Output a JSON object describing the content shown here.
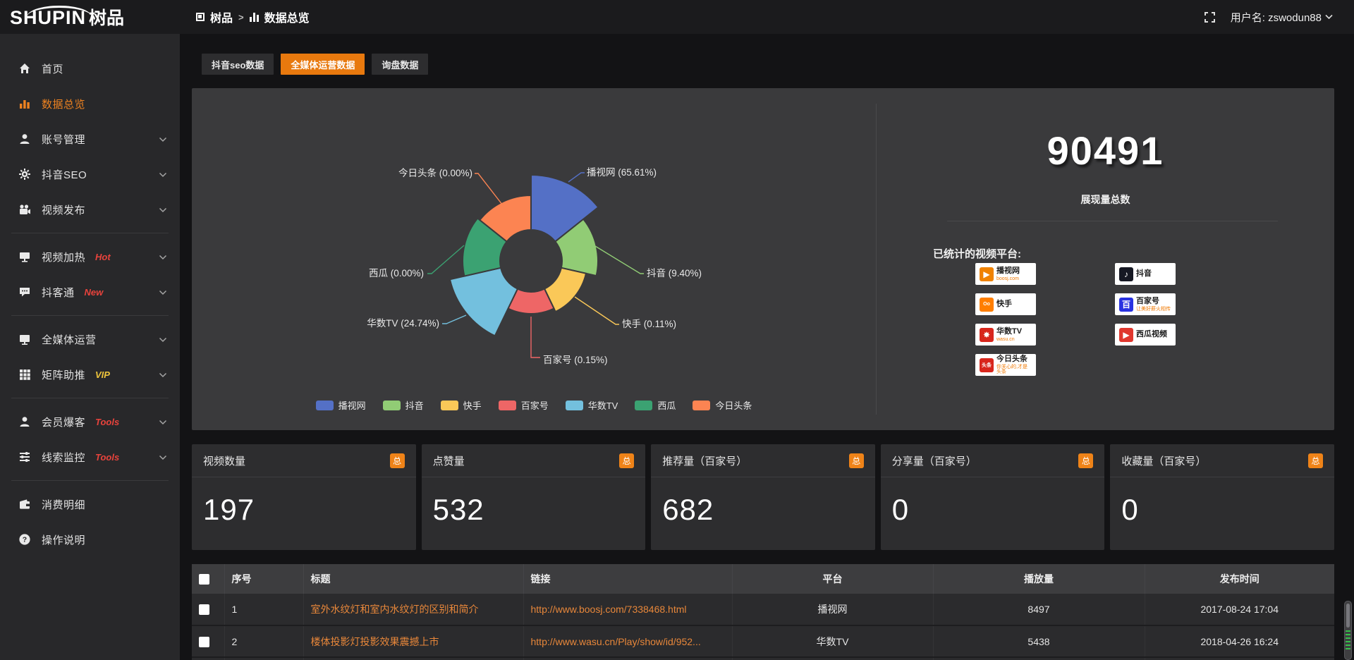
{
  "topbar": {
    "logo_main": "SHUPIN",
    "logo_suffix": "树品",
    "breadcrumb": {
      "item1": "树品",
      "separator": ">",
      "item2": "数据总览"
    },
    "username": "用户名: zswodun88"
  },
  "sidebar": {
    "items": [
      {
        "label": "首页",
        "icon": "home-icon",
        "chevron": false,
        "badge": "",
        "badge_color": "",
        "active": false,
        "divider_after": false
      },
      {
        "label": "数据总览",
        "icon": "bar-chart-icon",
        "chevron": false,
        "badge": "",
        "badge_color": "",
        "active": true,
        "divider_after": false
      },
      {
        "label": "账号管理",
        "icon": "user-icon",
        "chevron": true,
        "badge": "",
        "badge_color": "",
        "active": false,
        "divider_after": false
      },
      {
        "label": "抖音SEO",
        "icon": "gear-icon",
        "chevron": true,
        "badge": "",
        "badge_color": "",
        "active": false,
        "divider_after": false
      },
      {
        "label": "视频发布",
        "icon": "video-camera-icon",
        "chevron": true,
        "badge": "",
        "badge_color": "",
        "active": false,
        "divider_after": true
      },
      {
        "label": "视频加热",
        "icon": "screen-icon",
        "chevron": true,
        "badge": "Hot",
        "badge_color": "#e8433c",
        "active": false,
        "divider_after": false
      },
      {
        "label": "抖客通",
        "icon": "chat-icon",
        "chevron": true,
        "badge": "New",
        "badge_color": "#e8433c",
        "active": false,
        "divider_after": true
      },
      {
        "label": "全媒体运营",
        "icon": "monitor-icon",
        "chevron": true,
        "badge": "",
        "badge_color": "",
        "active": false,
        "divider_after": false
      },
      {
        "label": "矩阵助推",
        "icon": "grid-icon",
        "chevron": true,
        "badge": "VIP",
        "badge_color": "#edc43c",
        "active": false,
        "divider_after": true
      },
      {
        "label": "会员爆客",
        "icon": "member-icon",
        "chevron": true,
        "badge": "Tools",
        "badge_color": "#e8433c",
        "active": false,
        "divider_after": false
      },
      {
        "label": "线索监控",
        "icon": "sliders-icon",
        "chevron": true,
        "badge": "Tools",
        "badge_color": "#e8433c",
        "active": false,
        "divider_after": true
      },
      {
        "label": "消费明细",
        "icon": "wallet-icon",
        "chevron": false,
        "badge": "",
        "badge_color": "",
        "active": false,
        "divider_after": false
      },
      {
        "label": "操作说明",
        "icon": "help-icon",
        "chevron": false,
        "badge": "",
        "badge_color": "",
        "active": false,
        "divider_after": false
      }
    ]
  },
  "tabs": [
    {
      "label": "抖音seo数据",
      "active": false
    },
    {
      "label": "全媒体运营数据",
      "active": true
    },
    {
      "label": "询盘数据",
      "active": false
    }
  ],
  "chart_data": {
    "type": "pie",
    "subtype": "nightingale-rose",
    "title": "",
    "legend_position": "bottom",
    "items": [
      {
        "name": "播视网",
        "percent": 65.61,
        "color": "#5470c6"
      },
      {
        "name": "抖音",
        "percent": 9.4,
        "color": "#91cc75"
      },
      {
        "name": "快手",
        "percent": 0.11,
        "color": "#fac858"
      },
      {
        "name": "百家号",
        "percent": 0.15,
        "color": "#ee6666"
      },
      {
        "name": "华数TV",
        "percent": 24.74,
        "color": "#73c0de"
      },
      {
        "name": "西瓜",
        "percent": 0.0,
        "color": "#3ba272"
      },
      {
        "name": "今日头条",
        "percent": 0.0,
        "color": "#fc8452"
      }
    ],
    "total_shown": 90491
  },
  "summary": {
    "total_value": "90491",
    "total_label": "展现量总数",
    "platforms_label": "已统计的视频平台:",
    "platform_columns": [
      [
        {
          "name": "播视网",
          "sub": "boosj.com",
          "logo_icon": "play-circle-icon",
          "logo_char": "▶",
          "logo_color": "#f08200"
        },
        {
          "name": "快手",
          "sub": "",
          "logo_icon": "kuaishou-icon",
          "logo_char": "Oo",
          "logo_color": "#ff7e00"
        },
        {
          "name": "华数TV",
          "sub": "wasu.cn",
          "logo_icon": "wasu-burst-icon",
          "logo_char": "✸",
          "logo_color": "#d8261c"
        },
        {
          "name": "今日头条",
          "sub": "你关心的,才是头条",
          "logo_icon": "toutiao-icon",
          "logo_char": "头条",
          "logo_color": "#d8261c"
        }
      ],
      [
        {
          "name": "抖音",
          "sub": "",
          "logo_icon": "tiktok-note-icon",
          "logo_char": "♪",
          "logo_color": "#161823"
        },
        {
          "name": "百家号",
          "sub": "让美好薪火相传",
          "logo_icon": "baijiahao-icon",
          "logo_char": "百",
          "logo_color": "#2932e1"
        },
        {
          "name": "西瓜视频",
          "sub": "",
          "logo_icon": "xigua-icon",
          "logo_char": "▶",
          "logo_color": "#e0372e"
        }
      ]
    ]
  },
  "stat_cards": [
    {
      "label": "视频数量",
      "badge": "总",
      "value": "197"
    },
    {
      "label": "点赞量",
      "badge": "总",
      "value": "532"
    },
    {
      "label": "推荐量（百家号）",
      "badge": "总",
      "value": "682"
    },
    {
      "label": "分享量（百家号）",
      "badge": "总",
      "value": "0"
    },
    {
      "label": "收藏量（百家号）",
      "badge": "总",
      "value": "0"
    }
  ],
  "table": {
    "headers": [
      "序号",
      "标题",
      "链接",
      "平台",
      "播放量",
      "发布时间"
    ],
    "rows": [
      {
        "index": "1",
        "title": "室外水纹灯和室内水纹灯的区别和简介",
        "link": "http://www.boosj.com/7338468.html",
        "platform": "播视网",
        "plays": "8497",
        "time": "2017-08-24 17:04"
      },
      {
        "index": "2",
        "title": "楼体投影灯投影效果震撼上市",
        "link": "http://www.wasu.cn/Play/show/id/952...",
        "platform": "华数TV",
        "plays": "5438",
        "time": "2018-04-26 16:24"
      },
      {
        "index": "",
        "title": "",
        "link": "",
        "platform": "",
        "plays": "",
        "time": ""
      }
    ]
  },
  "colors": {
    "accent_orange": "#e8790e",
    "badge_orange": "#ef8318",
    "link_orange": "#e8873a",
    "panel_bg": "#3a3a3c",
    "sidebar_bg": "#28282a"
  }
}
